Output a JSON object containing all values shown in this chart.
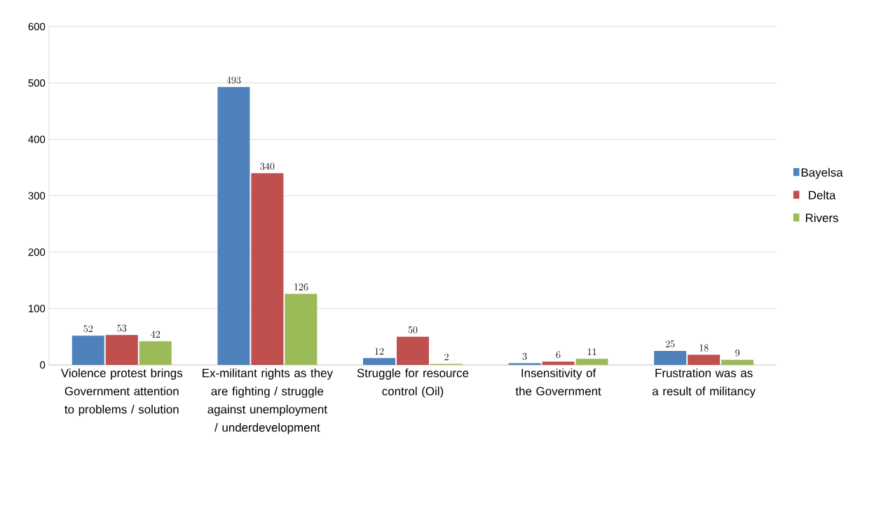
{
  "chart_data": {
    "type": "bar",
    "categories": [
      "Violence protest brings Government attention to problems / solution",
      "Ex-militant rights as they are fighting / struggle against unemployment / underdevelopment",
      "Struggle for resource control (Oil)",
      "Insensitivity of the Government",
      "Frustration was as a result of militancy"
    ],
    "series": [
      {
        "name": "Bayelsa",
        "color": "#4f81bd",
        "values": [
          52,
          493,
          12,
          3,
          25
        ]
      },
      {
        "name": "Delta",
        "color": "#c0504d",
        "values": [
          53,
          340,
          50,
          6,
          18
        ]
      },
      {
        "name": "Rivers",
        "color": "#9bbb59",
        "values": [
          42,
          126,
          2,
          11,
          9
        ]
      }
    ],
    "ylim": [
      0,
      600
    ],
    "yticks": [
      0,
      100,
      200,
      300,
      400,
      500,
      600
    ],
    "grid": "y",
    "legend": "right",
    "data_labels": true
  }
}
